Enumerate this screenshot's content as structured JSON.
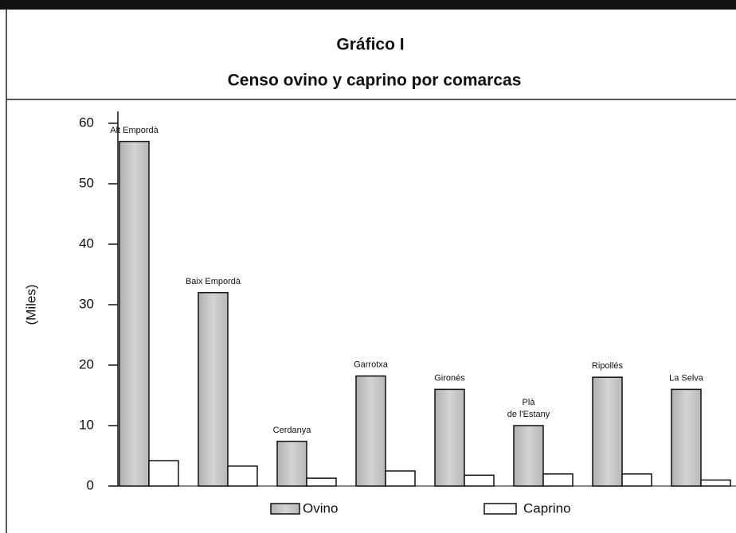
{
  "chart_data": {
    "type": "bar",
    "title": "Gráfico I",
    "subtitle": "Censo ovino y caprino por comarcas",
    "y_label": "(Miles)",
    "categories": [
      "Alt Empordà",
      "Baix Empordà",
      "Cerdanya",
      "Garrotxa",
      "Gironés",
      "Plà de l'Estany",
      "Ripollés",
      "La Selva"
    ],
    "series": [
      {
        "name": "Ovino",
        "color": "#c4c4c4",
        "values": [
          57,
          32,
          7.4,
          18.2,
          16,
          10,
          18,
          16
        ]
      },
      {
        "name": "Caprino",
        "color": "#ffffff",
        "values": [
          4.2,
          3.3,
          1.3,
          2.5,
          1.8,
          2,
          2,
          1
        ]
      }
    ],
    "ylim": [
      0,
      60
    ],
    "yticks": [
      0,
      10,
      20,
      30,
      40,
      50,
      60
    ]
  }
}
